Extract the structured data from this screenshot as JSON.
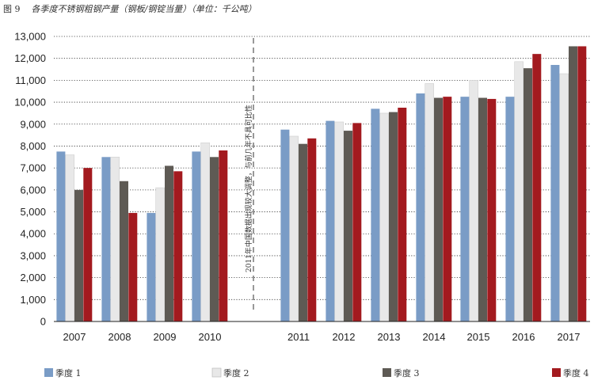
{
  "figure": {
    "label": "图 9",
    "title": "各季度不锈钢粗钢产量（钢板/钢锭当量）（单位：千公吨）"
  },
  "chart_data": {
    "type": "bar",
    "categories": [
      "2007",
      "2008",
      "2009",
      "2010",
      "2011",
      "2012",
      "2013",
      "2014",
      "2015",
      "2016",
      "2017"
    ],
    "series": [
      {
        "name": "季度 1",
        "values": [
          7750,
          7500,
          4950,
          7750,
          8750,
          9150,
          9700,
          10400,
          10250,
          10250,
          11700
        ]
      },
      {
        "name": "季度 2",
        "values": [
          7600,
          7500,
          6100,
          8150,
          8450,
          9100,
          9500,
          10850,
          11000,
          11850,
          11300
        ]
      },
      {
        "name": "季度 3",
        "values": [
          6000,
          6400,
          7100,
          7500,
          8100,
          8700,
          9550,
          10200,
          10200,
          11550,
          12550
        ]
      },
      {
        "name": "季度 4",
        "values": [
          7000,
          4950,
          6850,
          7800,
          8350,
          9050,
          9750,
          10250,
          10150,
          12200,
          12550
        ]
      }
    ],
    "colors": [
      "#7a9cc6",
      "#e8e8e8",
      "#5e5a54",
      "#a31a1f"
    ],
    "ylim": [
      0,
      13000
    ],
    "yticks": [
      "0",
      "1,000",
      "2,000",
      "3,000",
      "4,000",
      "5,000",
      "6,000",
      "7,000",
      "8,000",
      "9,000",
      "10,000",
      "11,000",
      "12,000",
      "13,000"
    ],
    "grid": true,
    "legend_position": "bottom",
    "annotation": "2011年中国数据出现较大调整，与前几年不具可比性"
  }
}
